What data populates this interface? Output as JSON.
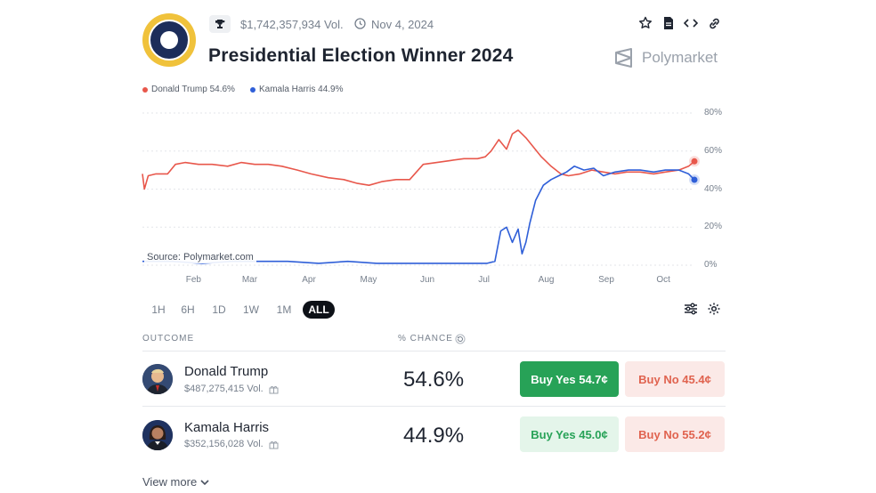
{
  "header": {
    "volume": "$1,742,357,934 Vol.",
    "date": "Nov 4, 2024",
    "title": "Presidential Election Winner 2024",
    "brand": "Polymarket"
  },
  "icons": {
    "seal": "presidential-seal-icon",
    "trophy": "trophy-icon",
    "clock": "clock-icon",
    "star": "star-icon",
    "doc": "document-icon",
    "embed": "code-icon",
    "link": "link-icon",
    "filter": "sliders-icon",
    "settings": "gear-icon",
    "gift": "gift-icon",
    "refresh": "refresh-icon",
    "chevron": "chevron-down-icon"
  },
  "colors": {
    "trump": "#e8574b",
    "harris": "#2f5fd8",
    "buy_yes": "#27a257",
    "buy_yes_light": "#e4f5ea",
    "buy_no": "#fbe9e7",
    "buy_no_text": "#e0634f"
  },
  "legend": [
    "Donald Trump 54.6%",
    "Kamala Harris 44.9%"
  ],
  "chart_data": {
    "type": "line",
    "x_ticks": [
      "Feb",
      "Mar",
      "Apr",
      "May",
      "Jun",
      "Jul",
      "Aug",
      "Sep",
      "Oct"
    ],
    "y_ticks": [
      "80%",
      "60%",
      "40%",
      "20%",
      "0%"
    ],
    "ylim": [
      0,
      80
    ],
    "grid": true,
    "source": "Source: Polymarket.com",
    "series": [
      {
        "name": "Donald Trump",
        "color": "#e8574b",
        "x": [
          "2024-01-05",
          "2024-01-06",
          "2024-01-08",
          "2024-01-12",
          "2024-01-18",
          "2024-01-22",
          "2024-01-27",
          "2024-02-03",
          "2024-02-10",
          "2024-02-18",
          "2024-02-25",
          "2024-03-03",
          "2024-03-10",
          "2024-03-17",
          "2024-03-25",
          "2024-04-01",
          "2024-04-10",
          "2024-04-18",
          "2024-04-25",
          "2024-05-01",
          "2024-05-08",
          "2024-05-15",
          "2024-05-22",
          "2024-05-29",
          "2024-06-05",
          "2024-06-12",
          "2024-06-19",
          "2024-06-26",
          "2024-06-30",
          "2024-07-03",
          "2024-07-07",
          "2024-07-11",
          "2024-07-14",
          "2024-07-17",
          "2024-07-21",
          "2024-07-25",
          "2024-07-29",
          "2024-08-03",
          "2024-08-08",
          "2024-08-12",
          "2024-08-18",
          "2024-08-24",
          "2024-08-30",
          "2024-09-05",
          "2024-09-11",
          "2024-09-18",
          "2024-09-25",
          "2024-10-01",
          "2024-10-08",
          "2024-10-13",
          "2024-10-16"
        ],
        "values": [
          48,
          40,
          47,
          48,
          48,
          53,
          54,
          53,
          53,
          52,
          54,
          53,
          53,
          52,
          50,
          48,
          46,
          45,
          43,
          42,
          44,
          45,
          45,
          53,
          54,
          55,
          56,
          56,
          57,
          60,
          66,
          61,
          69,
          71,
          67,
          62,
          57,
          52,
          48,
          47,
          48,
          50,
          49,
          48,
          49,
          49,
          48,
          49,
          50,
          52,
          54.6
        ]
      },
      {
        "name": "Kamala Harris",
        "color": "#2f5fd8",
        "x": [
          "2024-01-05",
          "2024-01-20",
          "2024-02-05",
          "2024-02-20",
          "2024-03-05",
          "2024-03-20",
          "2024-04-05",
          "2024-04-20",
          "2024-05-05",
          "2024-05-20",
          "2024-06-05",
          "2024-06-20",
          "2024-07-01",
          "2024-07-05",
          "2024-07-08",
          "2024-07-11",
          "2024-07-14",
          "2024-07-17",
          "2024-07-19",
          "2024-07-21",
          "2024-07-23",
          "2024-07-26",
          "2024-07-30",
          "2024-08-03",
          "2024-08-07",
          "2024-08-11",
          "2024-08-15",
          "2024-08-20",
          "2024-08-25",
          "2024-08-30",
          "2024-09-05",
          "2024-09-12",
          "2024-09-18",
          "2024-09-25",
          "2024-10-01",
          "2024-10-08",
          "2024-10-13",
          "2024-10-16"
        ],
        "values": [
          2,
          2,
          1,
          2,
          2,
          2,
          1,
          2,
          1,
          1,
          1,
          1,
          1,
          2,
          18,
          20,
          12,
          19,
          6,
          12,
          22,
          34,
          42,
          45,
          47,
          49,
          52,
          50,
          51,
          47,
          49,
          50,
          50,
          49,
          50,
          50,
          48,
          44.9
        ]
      }
    ]
  },
  "ranges": [
    "1H",
    "6H",
    "1D",
    "1W",
    "1M",
    "ALL"
  ],
  "active_range": "ALL",
  "table": {
    "col_outcome": "OUTCOME",
    "col_chance": "% CHANCE",
    "rows": [
      {
        "name": "Donald Trump",
        "volume": "$487,275,415 Vol.",
        "chance": "54.6%",
        "buy_yes": "Buy Yes 54.7¢",
        "buy_no": "Buy No 45.4¢"
      },
      {
        "name": "Kamala Harris",
        "volume": "$352,156,028 Vol.",
        "chance": "44.9%",
        "buy_yes": "Buy Yes 45.0¢",
        "buy_no": "Buy No 55.2¢"
      }
    ]
  },
  "view_more": "View more"
}
